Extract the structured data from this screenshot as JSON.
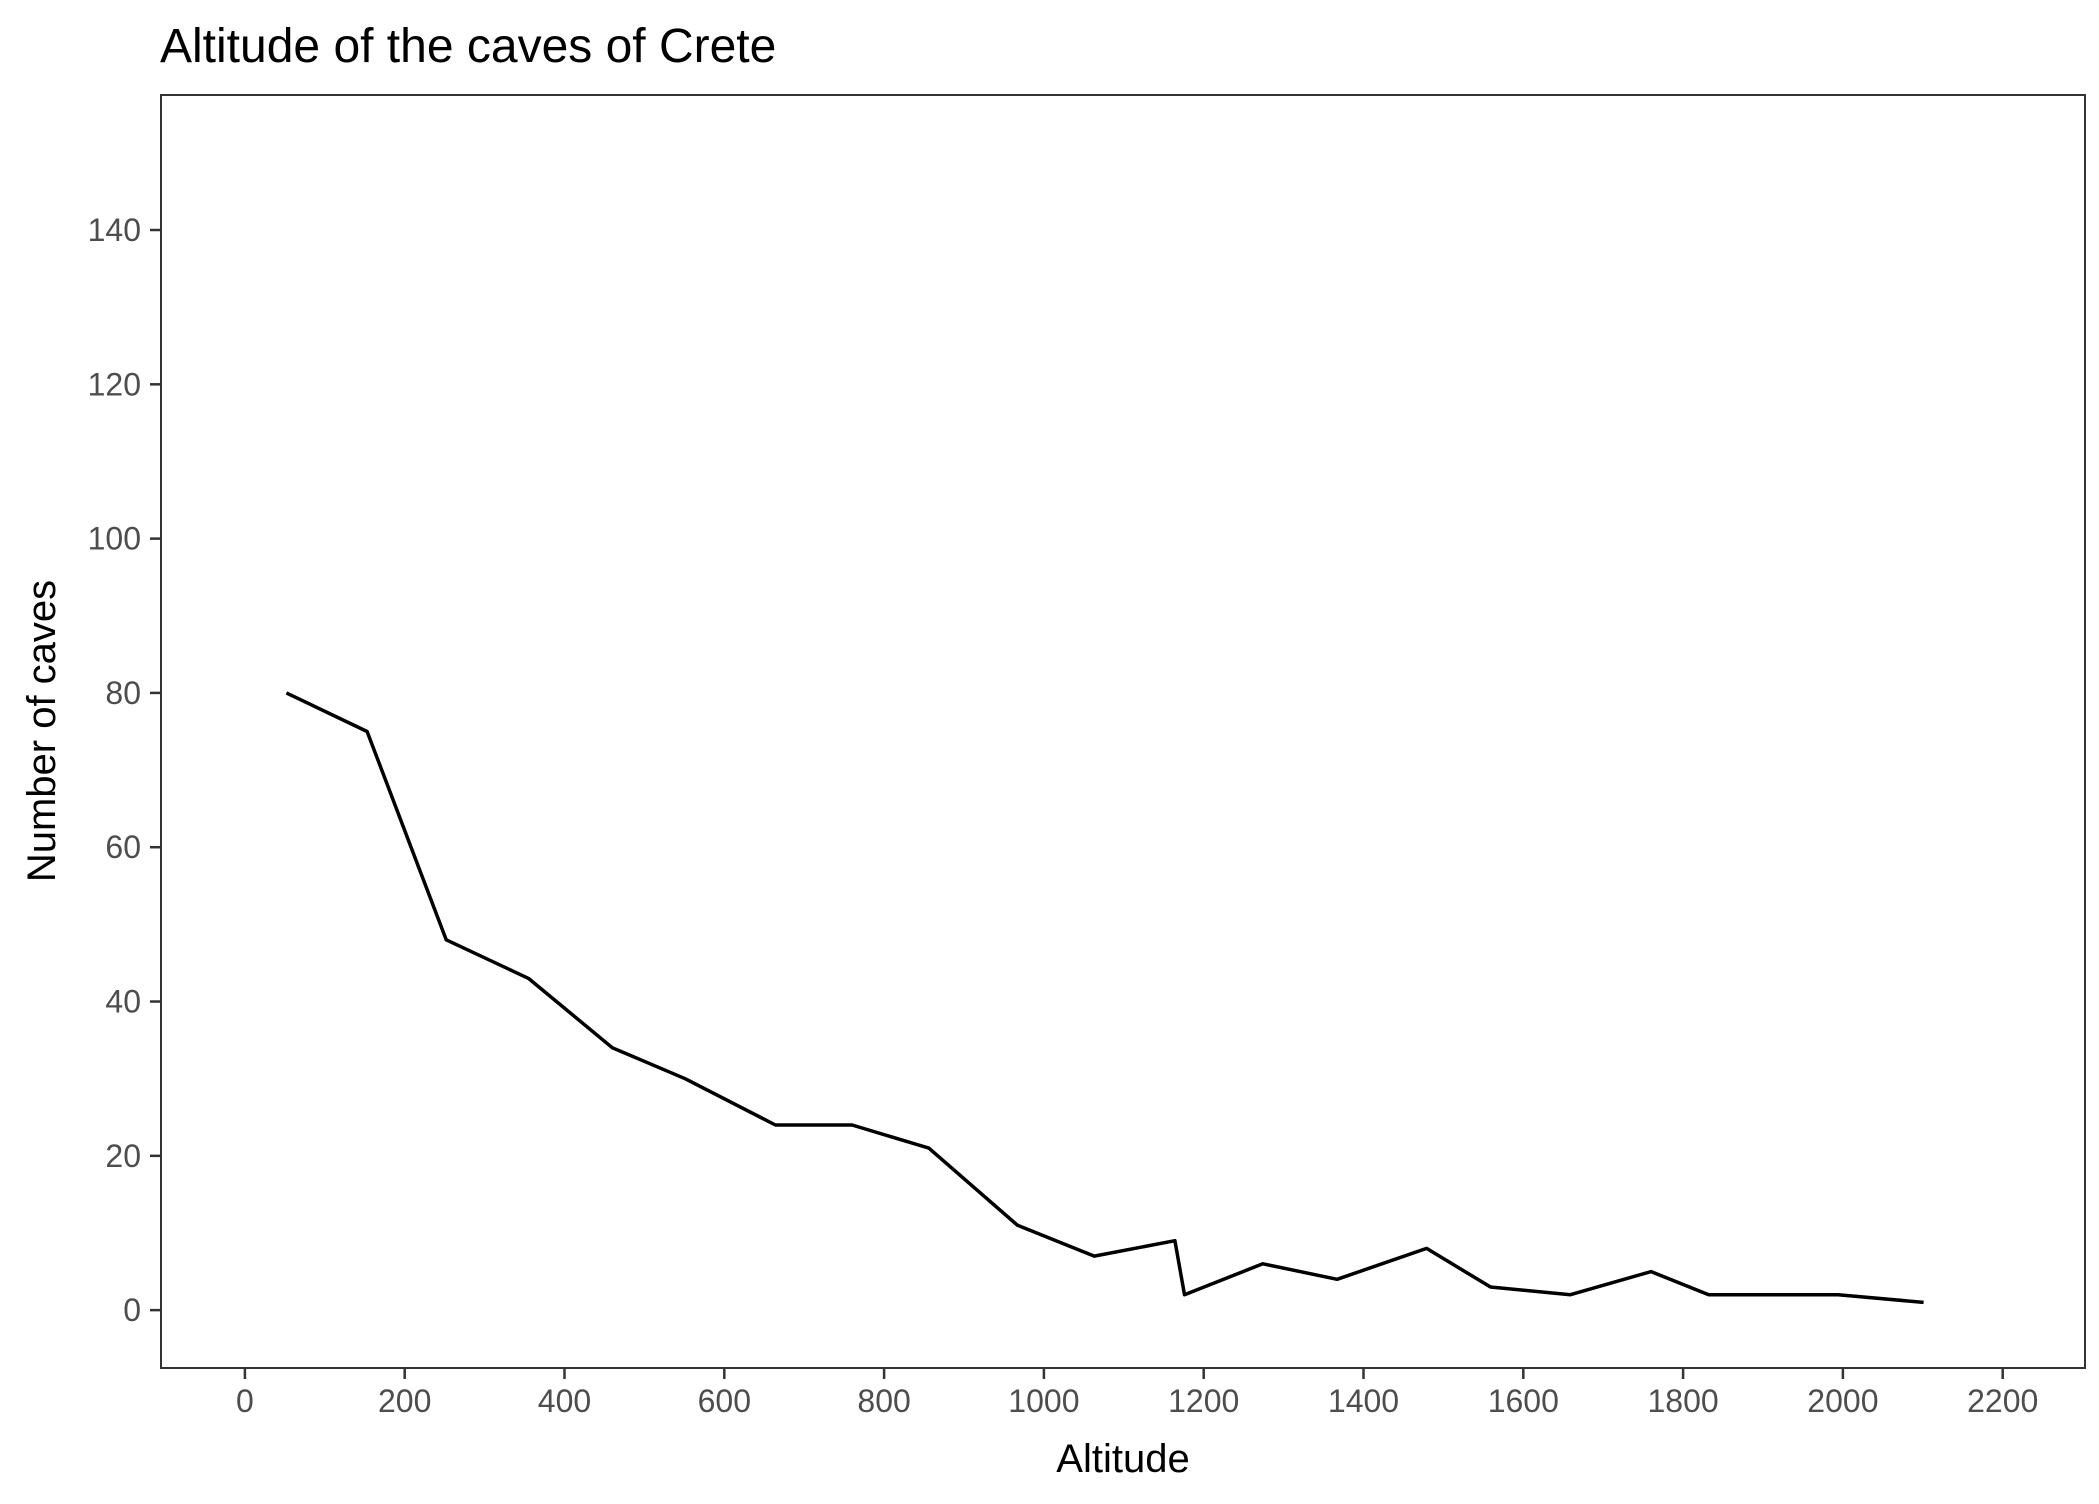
{
  "chart_data": {
    "type": "line",
    "title": "Altitude of the caves of Crete",
    "xlabel": "Altitude",
    "ylabel": "Number of caves",
    "xlim": [
      -105,
      2303
    ],
    "ylim": [
      -7.5,
      157.5
    ],
    "x_ticks": [
      0,
      200,
      400,
      600,
      800,
      1000,
      1200,
      1400,
      1600,
      1800,
      2000,
      2200
    ],
    "y_ticks": [
      0,
      20,
      40,
      60,
      80,
      100,
      120,
      140
    ],
    "grid": false,
    "legend": "none",
    "line_color": "#000000",
    "series": [
      {
        "x": [
          52,
          153,
          252,
          355,
          460,
          551,
          664,
          760,
          856,
          967,
          1063,
          1164,
          1176,
          1274,
          1367,
          1479,
          1559,
          1659,
          1760,
          1832,
          1994,
          2101
        ],
        "y": [
          80,
          75,
          48,
          43,
          34,
          30,
          24,
          24,
          21,
          11,
          7,
          9,
          2,
          6,
          4,
          8,
          3,
          2,
          5,
          2,
          2,
          1
        ]
      }
    ]
  }
}
